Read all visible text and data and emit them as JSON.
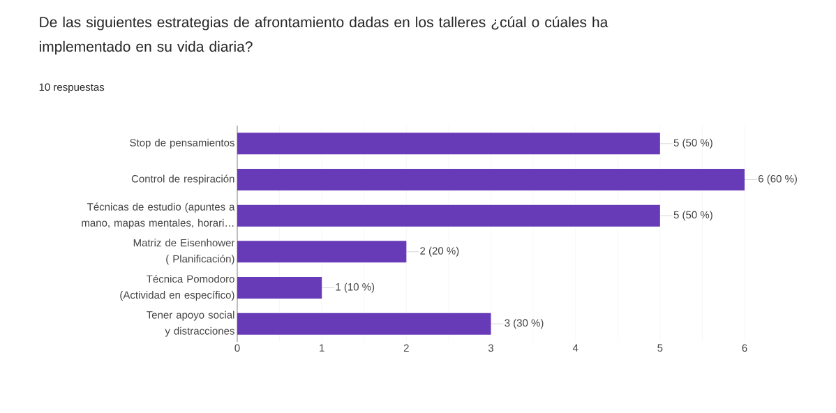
{
  "chart_data": {
    "type": "bar",
    "orientation": "horizontal",
    "title": "De las siguientes estrategias de afrontamiento dadas en los talleres ¿cúal o cúales ha implementado en su vida diaria?",
    "subtitle": "10 respuestas",
    "categories": [
      "Stop de pensamientos",
      "Control de respiración",
      "Técnicas de estudio (apuntes a mano, mapas mentales, horari…",
      "Matriz de Eisenhower ( Planificación)",
      "Técnica Pomodoro (Actividad en específico)",
      "Tener apoyo social y distracciones"
    ],
    "values": [
      5,
      6,
      5,
      2,
      1,
      3
    ],
    "value_labels": [
      "5 (50 %)",
      "6 (60 %)",
      "5 (50 %)",
      "2 (20 %)",
      "1 (10 %)",
      "3 (30 %)"
    ],
    "color": "#673ab7",
    "xlim": [
      0,
      6
    ],
    "xticks": [
      0,
      1,
      2,
      3,
      4,
      5,
      6
    ],
    "grid": "x"
  }
}
